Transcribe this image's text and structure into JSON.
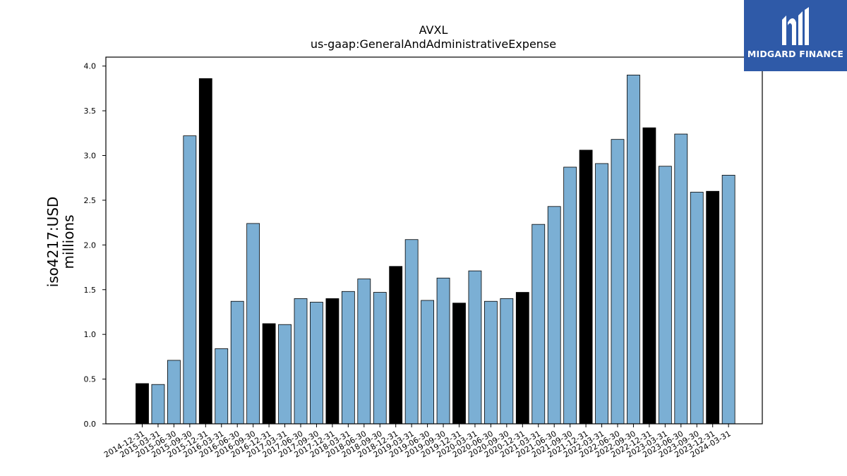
{
  "chart_data": {
    "type": "bar",
    "title": "AVXL",
    "subtitle": "us-gaap:GeneralAndAdministrativeExpense",
    "ylabel_line1": "iso4217:USD",
    "ylabel_line2": "millions",
    "ylim": [
      0,
      4.1
    ],
    "yticks": [
      0.0,
      0.5,
      1.0,
      1.5,
      2.0,
      2.5,
      3.0,
      3.5,
      4.0
    ],
    "categories": [
      "2014-12-31",
      "2015-03-31",
      "2015-06-30",
      "2015-09-30",
      "2015-12-31",
      "2016-03-31",
      "2016-06-30",
      "2016-09-30",
      "2016-12-31",
      "2017-03-31",
      "2017-06-30",
      "2017-09-30",
      "2017-12-31",
      "2018-03-31",
      "2018-06-30",
      "2018-09-30",
      "2018-12-31",
      "2019-03-31",
      "2019-06-30",
      "2019-09-30",
      "2019-12-31",
      "2020-03-31",
      "2020-06-30",
      "2020-09-30",
      "2020-12-31",
      "2021-03-31",
      "2021-06-30",
      "2021-09-30",
      "2021-12-31",
      "2022-03-31",
      "2022-06-30",
      "2022-09-30",
      "2022-12-31",
      "2023-03-31",
      "2023-06-30",
      "2023-09-30",
      "2023-12-31",
      "2024-03-31"
    ],
    "values": [
      0.45,
      0.44,
      0.71,
      3.22,
      3.86,
      0.84,
      1.37,
      2.24,
      1.12,
      1.11,
      1.4,
      1.36,
      1.4,
      1.48,
      1.62,
      1.47,
      1.76,
      2.06,
      1.38,
      1.63,
      1.35,
      1.71,
      1.37,
      1.4,
      1.47,
      2.23,
      2.43,
      2.87,
      3.06,
      2.91,
      3.18,
      3.9,
      3.31,
      2.88,
      3.24,
      2.59,
      2.6,
      2.78
    ],
    "highlight": [
      true,
      false,
      false,
      false,
      true,
      false,
      false,
      false,
      true,
      false,
      false,
      false,
      true,
      false,
      false,
      false,
      true,
      false,
      false,
      false,
      true,
      false,
      false,
      false,
      true,
      false,
      false,
      false,
      true,
      false,
      false,
      false,
      true,
      false,
      false,
      false,
      true,
      false
    ],
    "colors": {
      "bar": "#7bafd4",
      "highlight": "#000000",
      "edge": "#000000"
    },
    "grid": false,
    "legend": false
  },
  "brand": {
    "name": "MIDGARD FINANCE",
    "logo_icon": "midgard-logo-icon",
    "background": "#2f5aa8"
  }
}
